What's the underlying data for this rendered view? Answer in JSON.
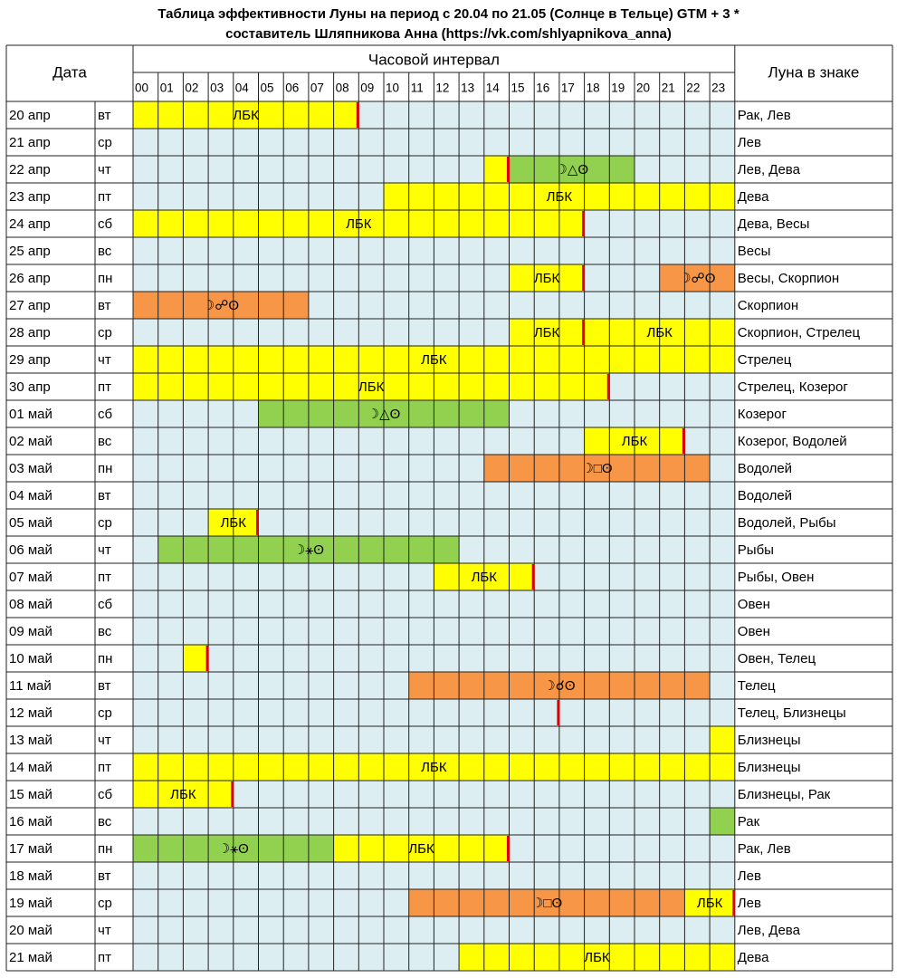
{
  "title_line1": "Таблица эффективности Луны на период с 20.04 по 21.05 (Солнце в Тельце) GTM + 3 *",
  "title_line2": "составитель Шляпникова Анна (https://vk.com/shlyapnikova_anna)",
  "headers": {
    "date": "Дата",
    "interval": "Часовой интервал",
    "moon_sign": "Луна в знаке"
  },
  "hours": [
    "00",
    "01",
    "02",
    "03",
    "04",
    "05",
    "06",
    "07",
    "08",
    "09",
    "10",
    "11",
    "12",
    "13",
    "14",
    "15",
    "16",
    "17",
    "18",
    "19",
    "20",
    "21",
    "22",
    "23"
  ],
  "colors": {
    "yellow": "#ffff00",
    "green": "#92d050",
    "orange": "#f79646",
    "red": "#e00000",
    "cell": "#ddeef3",
    "line": "#222222"
  },
  "rows": [
    {
      "date": "20 апр",
      "day": "вт",
      "sign": "Рак, Лев",
      "bars": [
        {
          "start": 0,
          "end": 9,
          "color": "yellow",
          "label": "ЛБК"
        }
      ],
      "marks": [
        9
      ]
    },
    {
      "date": "21 апр",
      "day": "ср",
      "sign": "Лев",
      "bars": [],
      "marks": []
    },
    {
      "date": "22 апр",
      "day": "чт",
      "sign": "Лев, Дева",
      "bars": [
        {
          "start": 14,
          "end": 15,
          "color": "yellow",
          "label": ""
        },
        {
          "start": 15,
          "end": 20,
          "color": "green",
          "label": "☽△ʘ"
        }
      ],
      "marks": [
        15
      ]
    },
    {
      "date": "23 апр",
      "day": "пт",
      "sign": "Дева",
      "bars": [
        {
          "start": 10,
          "end": 24,
          "color": "yellow",
          "label": "ЛБК"
        }
      ],
      "marks": []
    },
    {
      "date": "24 апр",
      "day": "сб",
      "sign": "Дева, Весы",
      "bars": [
        {
          "start": 0,
          "end": 18,
          "color": "yellow",
          "label": "ЛБК"
        }
      ],
      "marks": [
        18
      ]
    },
    {
      "date": "25 апр",
      "day": "вс",
      "sign": "Весы",
      "bars": [],
      "marks": []
    },
    {
      "date": "26 апр",
      "day": "пн",
      "sign": "Весы, Скорпион",
      "bars": [
        {
          "start": 15,
          "end": 18,
          "color": "yellow",
          "label": "ЛБК"
        },
        {
          "start": 21,
          "end": 24,
          "color": "orange",
          "label": "☽☍ʘ"
        }
      ],
      "marks": [
        18
      ]
    },
    {
      "date": "27 апр",
      "day": "вт",
      "sign": "Скорпион",
      "bars": [
        {
          "start": 0,
          "end": 7,
          "color": "orange",
          "label": "☽☍ʘ"
        }
      ],
      "marks": []
    },
    {
      "date": "28 апр",
      "day": "ср",
      "sign": "Скорпион, Стрелец",
      "bars": [
        {
          "start": 15,
          "end": 18,
          "color": "yellow",
          "label": "ЛБК"
        },
        {
          "start": 18,
          "end": 24,
          "color": "yellow",
          "label": "ЛБК"
        }
      ],
      "marks": [
        18
      ]
    },
    {
      "date": "29 апр",
      "day": "чт",
      "sign": "Стрелец",
      "bars": [
        {
          "start": 0,
          "end": 24,
          "color": "yellow",
          "label": "ЛБК"
        }
      ],
      "marks": []
    },
    {
      "date": "30 апр",
      "day": "пт",
      "sign": "Стрелец, Козерог",
      "bars": [
        {
          "start": 0,
          "end": 19,
          "color": "yellow",
          "label": "ЛБК"
        }
      ],
      "marks": [
        19
      ]
    },
    {
      "date": "01 май",
      "day": "сб",
      "sign": "Козерог",
      "bars": [
        {
          "start": 5,
          "end": 15,
          "color": "green",
          "label": "☽△ʘ"
        }
      ],
      "marks": []
    },
    {
      "date": "02 май",
      "day": "вс",
      "sign": "Козерог, Водолей",
      "bars": [
        {
          "start": 18,
          "end": 22,
          "color": "yellow",
          "label": "ЛБК"
        }
      ],
      "marks": [
        22
      ]
    },
    {
      "date": "03 май",
      "day": "пн",
      "sign": "Водолей",
      "bars": [
        {
          "start": 14,
          "end": 23,
          "color": "orange",
          "label": "☽□ʘ"
        }
      ],
      "marks": []
    },
    {
      "date": "04 май",
      "day": "вт",
      "sign": "Водолей",
      "bars": [],
      "marks": []
    },
    {
      "date": "05 май",
      "day": "ср",
      "sign": "Водолей, Рыбы",
      "bars": [
        {
          "start": 3,
          "end": 5,
          "color": "yellow",
          "label": "ЛБК"
        }
      ],
      "marks": [
        5
      ]
    },
    {
      "date": "06 май",
      "day": "чт",
      "sign": "Рыбы",
      "bars": [
        {
          "start": 1,
          "end": 13,
          "color": "green",
          "label": "☽⚹ʘ"
        }
      ],
      "marks": []
    },
    {
      "date": "07 май",
      "day": "пт",
      "sign": "Рыбы, Овен",
      "bars": [
        {
          "start": 12,
          "end": 16,
          "color": "yellow",
          "label": "ЛБК"
        }
      ],
      "marks": [
        16
      ]
    },
    {
      "date": "08 май",
      "day": "сб",
      "sign": "Овен",
      "bars": [],
      "marks": []
    },
    {
      "date": "09 май",
      "day": "вс",
      "sign": "Овен",
      "bars": [],
      "marks": []
    },
    {
      "date": "10 май",
      "day": "пн",
      "sign": "Овен, Телец",
      "bars": [
        {
          "start": 2,
          "end": 3,
          "color": "yellow",
          "label": ""
        }
      ],
      "marks": [
        3
      ]
    },
    {
      "date": "11 май",
      "day": "вт",
      "sign": "Телец",
      "bars": [
        {
          "start": 11,
          "end": 23,
          "color": "orange",
          "label": "☽☌ʘ"
        }
      ],
      "marks": []
    },
    {
      "date": "12 май",
      "day": "ср",
      "sign": "Телец, Близнецы",
      "bars": [],
      "marks": [
        17
      ]
    },
    {
      "date": "13 май",
      "day": "чт",
      "sign": "Близнецы",
      "bars": [
        {
          "start": 23,
          "end": 24,
          "color": "yellow",
          "label": ""
        }
      ],
      "marks": []
    },
    {
      "date": "14 май",
      "day": "пт",
      "sign": "Близнецы",
      "bars": [
        {
          "start": 0,
          "end": 24,
          "color": "yellow",
          "label": "ЛБК"
        }
      ],
      "marks": []
    },
    {
      "date": "15 май",
      "day": "сб",
      "sign": "Близнецы, Рак",
      "bars": [
        {
          "start": 0,
          "end": 4,
          "color": "yellow",
          "label": "ЛБК"
        }
      ],
      "marks": [
        4
      ]
    },
    {
      "date": "16 май",
      "day": "вс",
      "sign": "Рак",
      "bars": [
        {
          "start": 23,
          "end": 24,
          "color": "green",
          "label": ""
        }
      ],
      "marks": []
    },
    {
      "date": "17 май",
      "day": "пн",
      "sign": "Рак, Лев",
      "bars": [
        {
          "start": 0,
          "end": 8,
          "color": "green",
          "label": "☽⚹ʘ"
        },
        {
          "start": 8,
          "end": 15,
          "color": "yellow",
          "label": "ЛБК"
        }
      ],
      "marks": [
        15
      ]
    },
    {
      "date": "18 май",
      "day": "вт",
      "sign": "Лев",
      "bars": [],
      "marks": []
    },
    {
      "date": "19 май",
      "day": "ср",
      "sign": "Лев",
      "bars": [
        {
          "start": 11,
          "end": 22,
          "color": "orange",
          "label": "☽□ʘ"
        },
        {
          "start": 22,
          "end": 24,
          "color": "yellow",
          "label": "ЛБК"
        }
      ],
      "marks": [
        24
      ]
    },
    {
      "date": "20 май",
      "day": "чт",
      "sign": "Лев, Дева",
      "bars": [],
      "marks": []
    },
    {
      "date": "21 май",
      "day": "пт",
      "sign": "Дева",
      "bars": [
        {
          "start": 13,
          "end": 24,
          "color": "yellow",
          "label": "ЛБК"
        }
      ],
      "marks": []
    }
  ]
}
